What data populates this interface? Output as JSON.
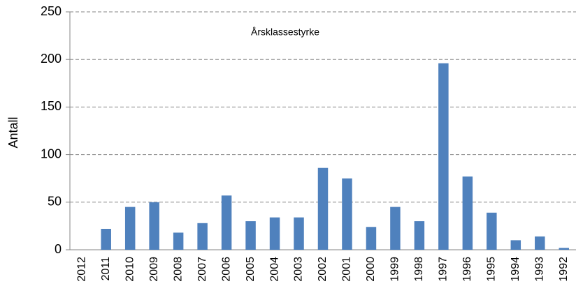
{
  "chart_data": {
    "type": "bar",
    "title": "Årsklassestyrke",
    "y_label": "Antall",
    "categories": [
      "2012",
      "2011",
      "2010",
      "2009",
      "2008",
      "2007",
      "2006",
      "2005",
      "2004",
      "2003",
      "2002",
      "2001",
      "2000",
      "1999",
      "1998",
      "1997",
      "1996",
      "1995",
      "1994",
      "1993",
      "1992"
    ],
    "values": [
      0,
      22,
      45,
      50,
      18,
      28,
      57,
      30,
      34,
      34,
      86,
      75,
      24,
      45,
      30,
      196,
      77,
      39,
      10,
      14,
      2
    ],
    "color": "#4f81bd",
    "ylim": [
      0,
      250
    ],
    "yticks": [
      0,
      50,
      100,
      150,
      200,
      250
    ],
    "grid": true
  }
}
